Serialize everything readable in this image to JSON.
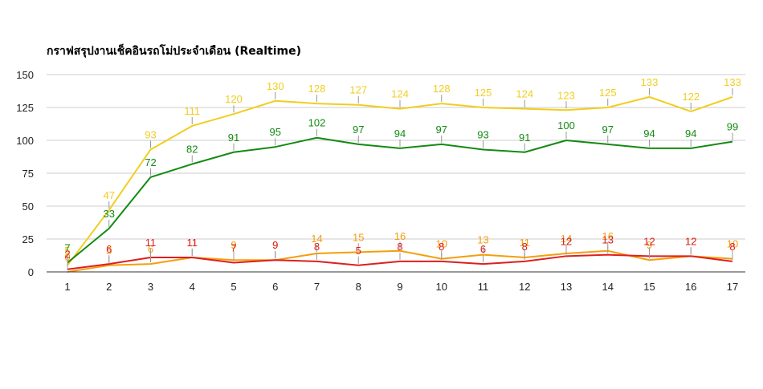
{
  "chart_data": {
    "type": "line",
    "title": "กราฟสรุปงานเช็คอินรถโม่ประจำเดือน (Realtime)",
    "xlabel": "",
    "ylabel": "",
    "x": [
      "1",
      "2",
      "3",
      "4",
      "5",
      "6",
      "7",
      "8",
      "9",
      "10",
      "11",
      "12",
      "13",
      "14",
      "15",
      "16",
      "17"
    ],
    "ylim": [
      0,
      150
    ],
    "yticks": [
      "0",
      "25",
      "50",
      "75",
      "100",
      "125",
      "150"
    ],
    "grid": true,
    "legend": "none",
    "series": [
      {
        "color": "#f2cd1f",
        "values": [
          5,
          47,
          93,
          111,
          120,
          130,
          128,
          127,
          124,
          128,
          125,
          124,
          123,
          125,
          133,
          122,
          133
        ]
      },
      {
        "color": "#138a13",
        "values": [
          7,
          33,
          72,
          82,
          91,
          95,
          102,
          97,
          94,
          97,
          93,
          91,
          100,
          97,
          94,
          94,
          99
        ]
      },
      {
        "color": "#f59e0b",
        "values": [
          0,
          5,
          6,
          11,
          9,
          9,
          14,
          15,
          16,
          10,
          13,
          11,
          14,
          16,
          9,
          12,
          10
        ]
      },
      {
        "color": "#dd1f1f",
        "values": [
          2,
          6,
          11,
          11,
          7,
          9,
          8,
          5,
          8,
          8,
          6,
          8,
          12,
          13,
          12,
          12,
          8
        ]
      }
    ]
  }
}
